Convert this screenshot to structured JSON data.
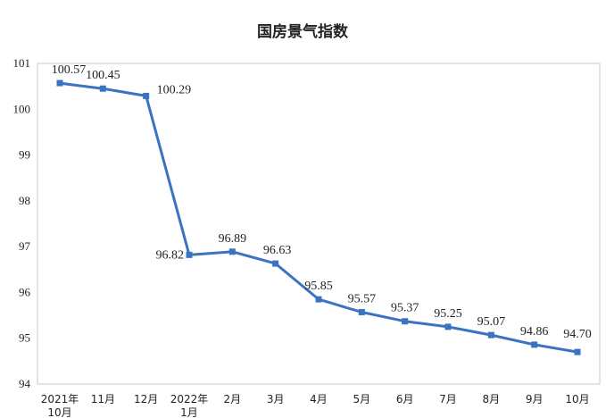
{
  "chart_data": {
    "type": "line",
    "title": "国房景气指数",
    "xlabel": "",
    "ylabel": "",
    "categories": [
      [
        "2021年",
        "10月"
      ],
      [
        "11月"
      ],
      [
        "12月"
      ],
      [
        "2022年",
        "1月"
      ],
      [
        "2月"
      ],
      [
        "3月"
      ],
      [
        "4月"
      ],
      [
        "5月"
      ],
      [
        "6月"
      ],
      [
        "7月"
      ],
      [
        "8月"
      ],
      [
        "9月"
      ],
      [
        "10月"
      ]
    ],
    "series": [
      {
        "values": [
          100.57,
          100.45,
          100.29,
          96.82,
          96.89,
          96.63,
          95.85,
          95.57,
          95.37,
          95.25,
          95.07,
          94.86,
          94.7
        ],
        "labels": [
          "100.57",
          "100.45",
          "100.29",
          "96.82",
          "96.89",
          "96.63",
          "95.85",
          "95.57",
          "95.37",
          "95.25",
          "95.07",
          "94.86",
          "94.70"
        ],
        "color": "#3a73c2"
      }
    ],
    "ylim": [
      94,
      101
    ],
    "yticks": [
      "94",
      "95",
      "96",
      "97",
      "98",
      "99",
      "100",
      "101"
    ],
    "grid": false,
    "legend": "none",
    "frame_color": "#c8c8c8"
  }
}
